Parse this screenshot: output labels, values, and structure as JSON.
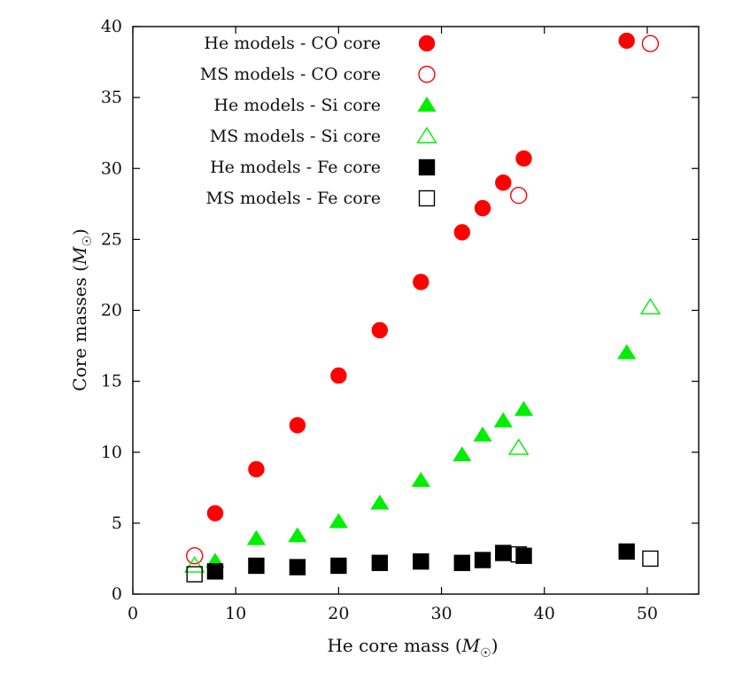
{
  "chart_data": {
    "type": "scatter",
    "xlabel": "He core mass",
    "ylabel": "Core masses",
    "unit_symbol": "M",
    "xlim": [
      0,
      55
    ],
    "ylim": [
      0,
      40
    ],
    "xticks": [
      0,
      10,
      20,
      30,
      40,
      50
    ],
    "yticks": [
      0,
      5,
      10,
      15,
      20,
      25,
      30,
      35,
      40
    ],
    "grid": false,
    "legend_position": "top-left",
    "series": [
      {
        "name": "He models - CO core",
        "marker": "circle-filled",
        "color": "#ff0000",
        "points": [
          [
            8,
            5.7
          ],
          [
            12,
            8.8
          ],
          [
            16,
            11.9
          ],
          [
            20,
            15.4
          ],
          [
            24,
            18.6
          ],
          [
            28,
            22.0
          ],
          [
            32,
            25.5
          ],
          [
            34,
            27.2
          ],
          [
            36,
            29.0
          ],
          [
            38,
            30.7
          ],
          [
            48,
            39.0
          ]
        ]
      },
      {
        "name": "MS models - CO core",
        "marker": "circle-open",
        "color": "#ff0000",
        "points": [
          [
            6,
            2.7
          ],
          [
            37.5,
            28.1
          ],
          [
            50.3,
            38.8
          ]
        ]
      },
      {
        "name": "He models - Si core",
        "marker": "triangle-filled",
        "color": "#00ee00",
        "points": [
          [
            8,
            2.3
          ],
          [
            12,
            3.9
          ],
          [
            16,
            4.1
          ],
          [
            20,
            5.1
          ],
          [
            24,
            6.4
          ],
          [
            28,
            8.0
          ],
          [
            32,
            9.8
          ],
          [
            34,
            11.2
          ],
          [
            36,
            12.2
          ],
          [
            38,
            13.0
          ],
          [
            48,
            17.0
          ]
        ]
      },
      {
        "name": "MS models - Si core",
        "marker": "triangle-open",
        "color": "#00ee00",
        "points": [
          [
            6,
            2.0
          ],
          [
            37.5,
            10.3
          ],
          [
            50.3,
            20.2
          ]
        ]
      },
      {
        "name": "He models - Fe core",
        "marker": "square-filled",
        "color": "#000000",
        "points": [
          [
            8,
            1.6
          ],
          [
            12,
            2.0
          ],
          [
            16,
            1.9
          ],
          [
            20,
            2.0
          ],
          [
            24,
            2.2
          ],
          [
            28,
            2.3
          ],
          [
            32,
            2.2
          ],
          [
            34,
            2.4
          ],
          [
            36,
            2.9
          ],
          [
            38,
            2.7
          ],
          [
            48,
            3.0
          ]
        ]
      },
      {
        "name": "MS models - Fe core",
        "marker": "square-open",
        "color": "#000000",
        "points": [
          [
            6,
            1.4
          ],
          [
            37.5,
            2.8
          ],
          [
            50.3,
            2.5
          ]
        ]
      }
    ]
  }
}
